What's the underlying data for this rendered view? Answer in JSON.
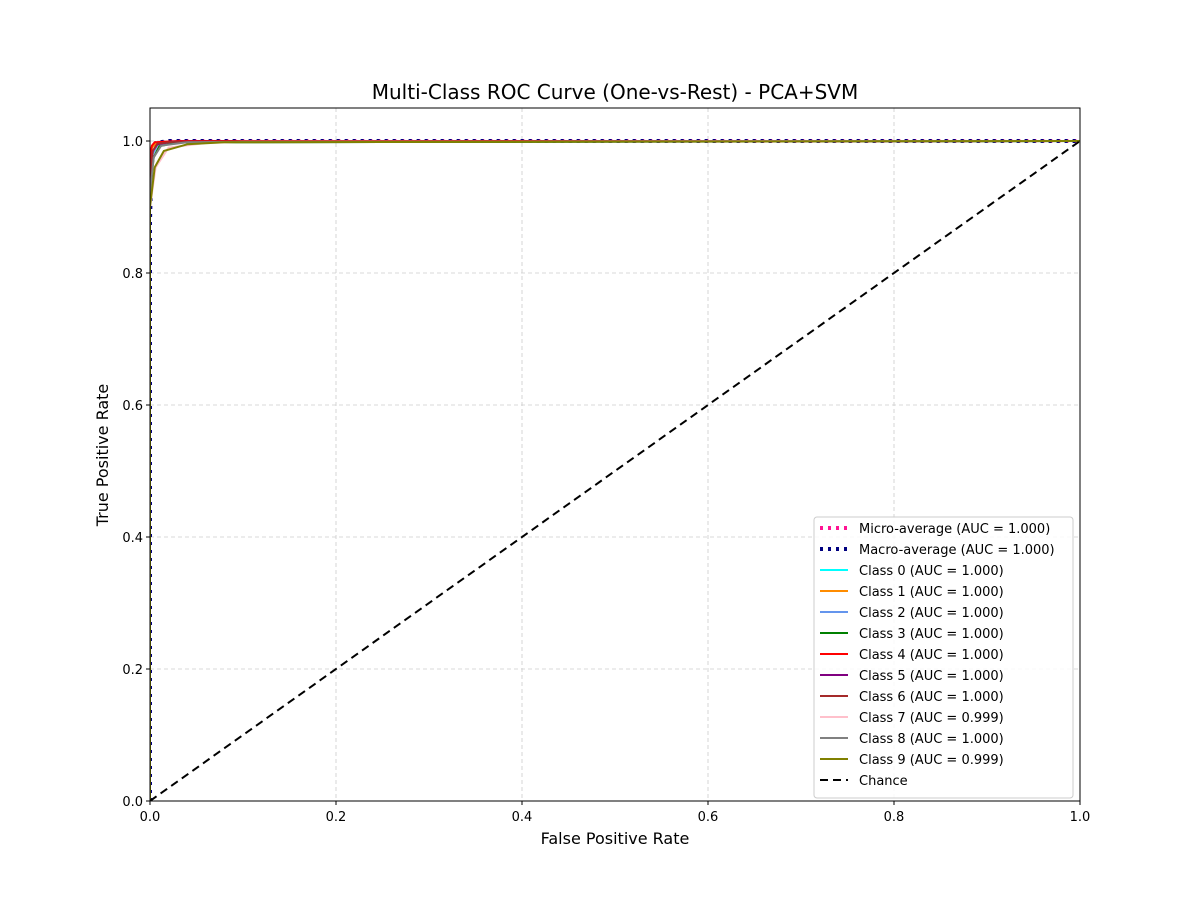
{
  "chart_data": {
    "type": "line",
    "title": "Multi-Class ROC Curve (One-vs-Rest) - PCA+SVM",
    "xlabel": "False Positive Rate",
    "ylabel": "True Positive Rate",
    "xlim": [
      0.0,
      1.0
    ],
    "ylim": [
      0.0,
      1.05
    ],
    "xticks": [
      0.0,
      0.2,
      0.4,
      0.6,
      0.8,
      1.0
    ],
    "yticks": [
      0.0,
      0.2,
      0.4,
      0.6,
      0.8,
      1.0
    ],
    "xtick_labels": [
      "0.0",
      "0.2",
      "0.4",
      "0.6",
      "0.8",
      "1.0"
    ],
    "ytick_labels": [
      "0.0",
      "0.2",
      "0.4",
      "0.6",
      "0.8",
      "1.0"
    ],
    "grid": true,
    "legend_position": "lower-right",
    "series": [
      {
        "name": "Micro-average (AUC = 1.000)",
        "color": "#ff1493",
        "style": "dotted",
        "x": [
          0,
          0,
          0.003,
          0.01,
          0.03,
          1.0
        ],
        "y": [
          0,
          0.95,
          0.99,
          0.998,
          1.0,
          1.0
        ]
      },
      {
        "name": "Macro-average (AUC = 1.000)",
        "color": "#000080",
        "style": "dotted",
        "x": [
          0,
          0,
          0.002,
          0.006,
          0.02,
          1.0
        ],
        "y": [
          0,
          0.88,
          0.985,
          0.997,
          1.0,
          1.0
        ]
      },
      {
        "name": "Class 0 (AUC = 1.000)",
        "color": "#00ffff",
        "style": "solid",
        "x": [
          0,
          0,
          0.002,
          0.005,
          0.015,
          1.0
        ],
        "y": [
          0,
          0.97,
          0.99,
          0.997,
          0.999,
          1.0
        ]
      },
      {
        "name": "Class 1 (AUC = 1.000)",
        "color": "#ff8c00",
        "style": "solid",
        "x": [
          0,
          0,
          0.002,
          0.006,
          0.02,
          1.0
        ],
        "y": [
          0,
          0.96,
          0.99,
          0.996,
          0.999,
          1.0
        ]
      },
      {
        "name": "Class 2 (AUC = 1.000)",
        "color": "#6495ed",
        "style": "solid",
        "x": [
          0,
          0,
          0.003,
          0.008,
          0.025,
          1.0
        ],
        "y": [
          0,
          0.94,
          0.98,
          0.994,
          0.998,
          1.0
        ]
      },
      {
        "name": "Class 3 (AUC = 1.000)",
        "color": "#008000",
        "style": "solid",
        "x": [
          0,
          0,
          0.004,
          0.01,
          0.03,
          1.0
        ],
        "y": [
          0,
          0.93,
          0.975,
          0.992,
          0.998,
          1.0
        ]
      },
      {
        "name": "Class 4 (AUC = 1.000)",
        "color": "#ff0000",
        "style": "solid",
        "x": [
          0,
          0,
          0.002,
          0.005,
          0.015,
          0.03,
          1.0
        ],
        "y": [
          0,
          0.975,
          0.993,
          0.998,
          0.999,
          1.0,
          1.0
        ]
      },
      {
        "name": "Class 5 (AUC = 1.000)",
        "color": "#800080",
        "style": "solid",
        "x": [
          0,
          0,
          0.003,
          0.008,
          0.025,
          1.0
        ],
        "y": [
          0,
          0.95,
          0.985,
          0.995,
          0.999,
          1.0
        ]
      },
      {
        "name": "Class 6 (AUC = 1.000)",
        "color": "#a52a2a",
        "style": "solid",
        "x": [
          0,
          0,
          0.003,
          0.008,
          0.025,
          1.0
        ],
        "y": [
          0,
          0.95,
          0.985,
          0.996,
          0.999,
          1.0
        ]
      },
      {
        "name": "Class 7 (AUC = 0.999)",
        "color": "#ffc0cb",
        "style": "solid",
        "x": [
          0,
          0,
          0.006,
          0.02,
          0.06,
          0.1,
          1.0
        ],
        "y": [
          0,
          0.9,
          0.96,
          0.99,
          0.997,
          0.999,
          1.0
        ]
      },
      {
        "name": "Class 8 (AUC = 1.000)",
        "color": "#808080",
        "style": "solid",
        "x": [
          0,
          0,
          0.004,
          0.012,
          0.04,
          0.1,
          1.0
        ],
        "y": [
          0,
          0.92,
          0.975,
          0.993,
          0.998,
          0.999,
          1.0
        ]
      },
      {
        "name": "Class 9 (AUC = 0.999)",
        "color": "#808000",
        "style": "solid",
        "x": [
          0,
          0,
          0.005,
          0.015,
          0.04,
          0.08,
          1.0
        ],
        "y": [
          0,
          0.9,
          0.96,
          0.985,
          0.995,
          0.998,
          1.0
        ]
      },
      {
        "name": "Chance",
        "color": "#000000",
        "style": "dashed",
        "x": [
          0,
          1
        ],
        "y": [
          0,
          1
        ]
      }
    ]
  }
}
